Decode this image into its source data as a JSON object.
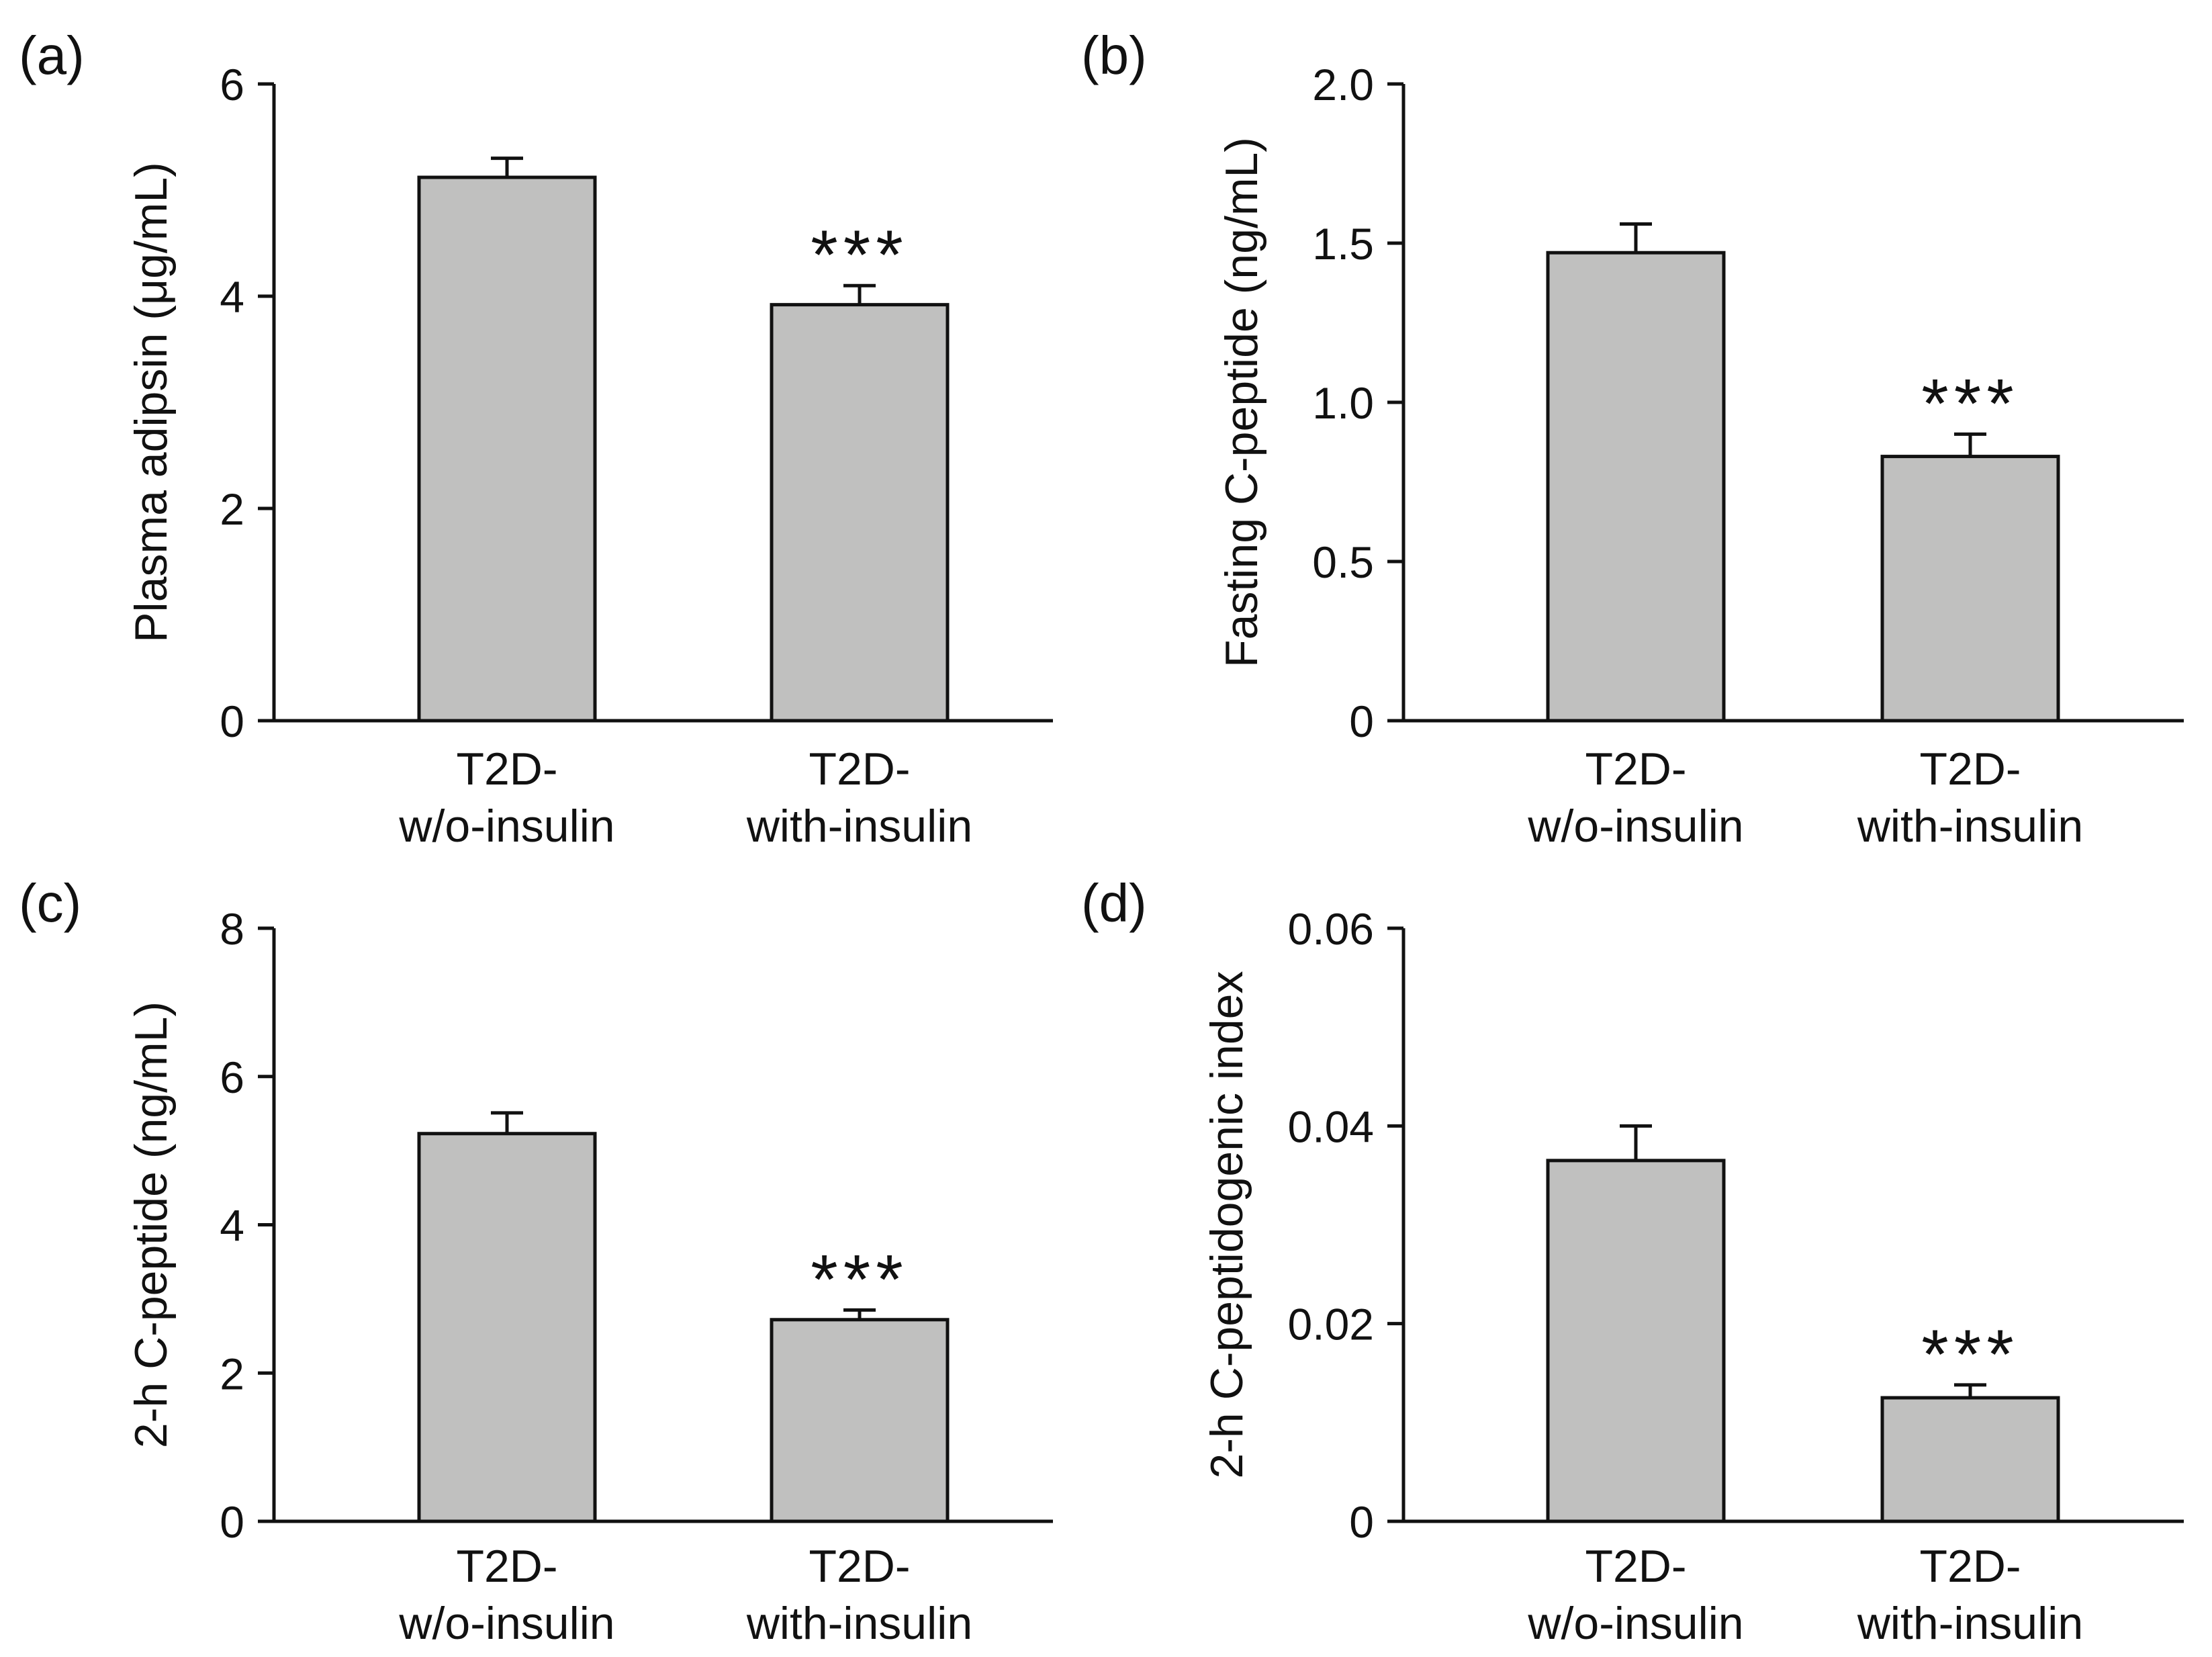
{
  "chart_data": [
    {
      "type": "bar",
      "panel_label": "(a)",
      "categories": [
        [
          "T2D-",
          "w/o-insulin"
        ],
        [
          "T2D-",
          "with-insulin"
        ]
      ],
      "values": [
        5.12,
        3.92
      ],
      "errors": [
        0.18,
        0.18
      ],
      "significance": [
        "",
        "***"
      ],
      "xlabel": "",
      "ylabel": "Plasma adipsin (μg/mL)",
      "ylim": [
        0,
        6
      ],
      "yticks": [
        0,
        2,
        4,
        6
      ],
      "ytick_labels": [
        "0",
        "2",
        "4",
        "6"
      ],
      "bar_color": "#c0c0bf"
    },
    {
      "type": "bar",
      "panel_label": "(b)",
      "categories": [
        [
          "T2D-",
          "w/o-insulin"
        ],
        [
          "T2D-",
          "with-insulin"
        ]
      ],
      "values": [
        1.47,
        0.83
      ],
      "errors": [
        0.09,
        0.07
      ],
      "significance": [
        "",
        "***"
      ],
      "xlabel": "",
      "ylabel": "Fasting C-peptide (ng/mL)",
      "ylim": [
        0,
        2.0
      ],
      "yticks": [
        0,
        0.5,
        1.0,
        1.5,
        2.0
      ],
      "ytick_labels": [
        "0",
        "0.5",
        "1.0",
        "1.5",
        "2.0"
      ],
      "bar_color": "#c0c0bf"
    },
    {
      "type": "bar",
      "panel_label": "(c)",
      "categories": [
        [
          "T2D-",
          "w/o-insulin"
        ],
        [
          "T2D-",
          "with-insulin"
        ]
      ],
      "values": [
        5.23,
        2.72
      ],
      "errors": [
        0.28,
        0.13
      ],
      "significance": [
        "",
        "***"
      ],
      "xlabel": "",
      "ylabel": "2-h C-peptide (ng/mL)",
      "ylim": [
        0,
        8
      ],
      "yticks": [
        0,
        2,
        4,
        6,
        8
      ],
      "ytick_labels": [
        "0",
        "2",
        "4",
        "6",
        "8"
      ],
      "bar_color": "#c0c0bf"
    },
    {
      "type": "bar",
      "panel_label": "(d)",
      "categories": [
        [
          "T2D-",
          "w/o-insulin"
        ],
        [
          "T2D-",
          "with-insulin"
        ]
      ],
      "values": [
        0.0365,
        0.0125
      ],
      "errors": [
        0.0035,
        0.0013
      ],
      "significance": [
        "",
        "***"
      ],
      "xlabel": "",
      "ylabel": "2-h C-peptidogenic index",
      "ylim": [
        0,
        0.06
      ],
      "yticks": [
        0,
        0.02,
        0.04,
        0.06
      ],
      "ytick_labels": [
        "0",
        "0.02",
        "0.04",
        "0.06"
      ],
      "bar_color": "#c0c0bf"
    }
  ]
}
